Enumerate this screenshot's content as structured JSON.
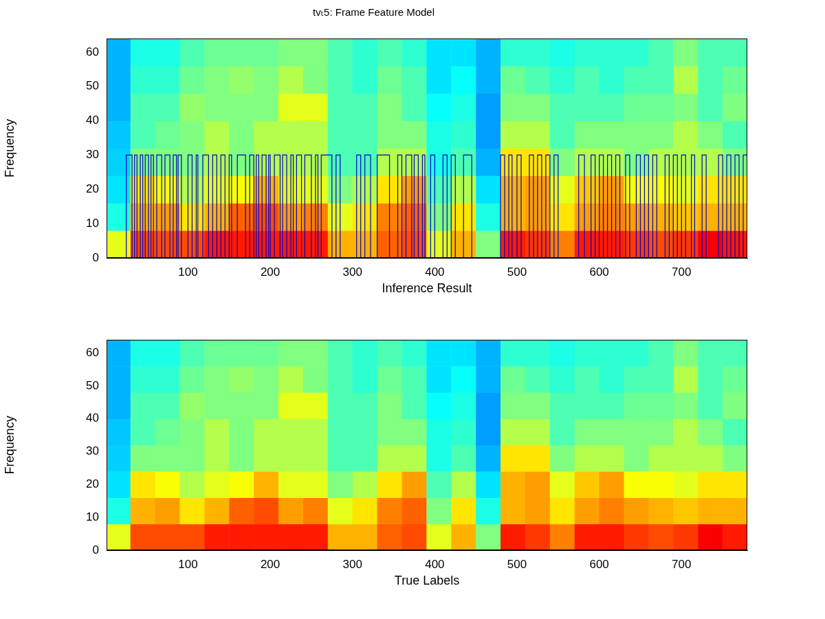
{
  "chart_data": [
    {
      "type": "heatmap",
      "title": "tvₜ5: Frame Feature Model",
      "x_label": "Inference Result",
      "y_label": "Frequency",
      "xlim": [
        1,
        780
      ],
      "xticks": [
        100,
        200,
        300,
        400,
        500,
        600,
        700
      ],
      "ylim": [
        0,
        64
      ],
      "yticks": [
        0,
        10,
        20,
        30,
        40,
        50,
        60
      ],
      "grid": false,
      "color_range": [
        0,
        1
      ],
      "x_edges": [
        0,
        30,
        60,
        90,
        120,
        150,
        180,
        210,
        240,
        270,
        300,
        330,
        360,
        390,
        420,
        450,
        480,
        510,
        540,
        570,
        600,
        630,
        660,
        690,
        720,
        750,
        780
      ],
      "y_edges": [
        0,
        8,
        16,
        24,
        32,
        40,
        48,
        56,
        64
      ],
      "cells": [
        [
          0.6,
          0.4,
          0.35,
          0.33,
          0.32,
          0.3,
          0.3,
          0.3
        ],
        [
          0.8,
          0.7,
          0.65,
          0.5,
          0.45,
          0.45,
          0.42,
          0.4
        ],
        [
          0.8,
          0.72,
          0.62,
          0.5,
          0.48,
          0.45,
          0.42,
          0.4
        ],
        [
          0.8,
          0.65,
          0.55,
          0.5,
          0.5,
          0.52,
          0.48,
          0.45
        ],
        [
          0.85,
          0.7,
          0.6,
          0.55,
          0.55,
          0.5,
          0.5,
          0.48
        ],
        [
          0.85,
          0.78,
          0.62,
          0.5,
          0.5,
          0.5,
          0.52,
          0.48
        ],
        [
          0.85,
          0.8,
          0.7,
          0.55,
          0.55,
          0.5,
          0.5,
          0.48
        ],
        [
          0.85,
          0.72,
          0.6,
          0.55,
          0.55,
          0.6,
          0.55,
          0.5
        ],
        [
          0.85,
          0.75,
          0.6,
          0.55,
          0.55,
          0.6,
          0.5,
          0.5
        ],
        [
          0.7,
          0.6,
          0.5,
          0.45,
          0.45,
          0.45,
          0.45,
          0.45
        ],
        [
          0.7,
          0.65,
          0.55,
          0.45,
          0.45,
          0.45,
          0.42,
          0.42
        ],
        [
          0.78,
          0.75,
          0.65,
          0.55,
          0.5,
          0.5,
          0.48,
          0.45
        ],
        [
          0.8,
          0.78,
          0.72,
          0.55,
          0.5,
          0.45,
          0.45,
          0.42
        ],
        [
          0.6,
          0.5,
          0.45,
          0.4,
          0.4,
          0.38,
          0.35,
          0.35
        ],
        [
          0.7,
          0.65,
          0.55,
          0.45,
          0.42,
          0.4,
          0.38,
          0.35
        ],
        [
          0.5,
          0.4,
          0.35,
          0.3,
          0.28,
          0.28,
          0.3,
          0.3
        ],
        [
          0.85,
          0.7,
          0.7,
          0.65,
          0.55,
          0.5,
          0.48,
          0.42
        ],
        [
          0.82,
          0.72,
          0.72,
          0.65,
          0.55,
          0.5,
          0.45,
          0.42
        ],
        [
          0.75,
          0.65,
          0.6,
          0.5,
          0.45,
          0.45,
          0.42,
          0.4
        ],
        [
          0.85,
          0.72,
          0.68,
          0.55,
          0.5,
          0.45,
          0.45,
          0.42
        ],
        [
          0.85,
          0.75,
          0.72,
          0.55,
          0.5,
          0.45,
          0.42,
          0.42
        ],
        [
          0.82,
          0.72,
          0.62,
          0.5,
          0.5,
          0.48,
          0.45,
          0.42
        ],
        [
          0.8,
          0.7,
          0.62,
          0.55,
          0.5,
          0.48,
          0.45,
          0.45
        ],
        [
          0.82,
          0.68,
          0.6,
          0.55,
          0.55,
          0.5,
          0.55,
          0.5
        ],
        [
          0.88,
          0.7,
          0.65,
          0.55,
          0.5,
          0.45,
          0.45,
          0.45
        ],
        [
          0.85,
          0.7,
          0.65,
          0.5,
          0.45,
          0.5,
          0.48,
          0.45
        ]
      ],
      "series": [
        {
          "type": "line",
          "line_style": "steps",
          "color": "#0000cc",
          "x": [
            1,
            25,
            32,
            35,
            38,
            42,
            45,
            48,
            52,
            55,
            58,
            62,
            68,
            72,
            78,
            82,
            86,
            88,
            92,
            100,
            105,
            110,
            112,
            118,
            125,
            130,
            135,
            140,
            145,
            150,
            153,
            160,
            170,
            175,
            180,
            183,
            186,
            190,
            195,
            198,
            200,
            205,
            212,
            215,
            220,
            225,
            228,
            232,
            238,
            242,
            250,
            255,
            258,
            262,
            275,
            280,
            285,
            305,
            310,
            315,
            322,
            330,
            345,
            355,
            360,
            365,
            372,
            375,
            380,
            385,
            388,
            395,
            400,
            410,
            415,
            420,
            425,
            435,
            445,
            480,
            485,
            490,
            494,
            500,
            505,
            515,
            520,
            525,
            530,
            535,
            540,
            545,
            550,
            575,
            582,
            590,
            595,
            600,
            605,
            610,
            615,
            620,
            625,
            632,
            637,
            645,
            650,
            655,
            660,
            665,
            670,
            680,
            685,
            690,
            695,
            700,
            705,
            712,
            716,
            725,
            730,
            745,
            750,
            755,
            760,
            765,
            770,
            775,
            780
          ],
          "values": [
            0,
            30,
            0,
            30,
            0,
            30,
            0,
            30,
            0,
            30,
            0,
            30,
            0,
            30,
            0,
            30,
            0,
            30,
            0,
            30,
            0,
            30,
            0,
            30,
            0,
            30,
            0,
            30,
            0,
            30,
            0,
            30,
            0,
            30,
            0,
            30,
            0,
            30,
            0,
            30,
            0,
            30,
            0,
            30,
            0,
            30,
            0,
            30,
            0,
            30,
            0,
            30,
            0,
            30,
            0,
            30,
            0,
            30,
            0,
            30,
            0,
            30,
            0,
            30,
            0,
            30,
            0,
            30,
            0,
            30,
            0,
            30,
            0,
            30,
            0,
            30,
            0,
            30,
            0,
            30,
            0,
            30,
            0,
            30,
            0,
            30,
            0,
            30,
            0,
            30,
            0,
            30,
            0,
            30,
            0,
            30,
            0,
            30,
            0,
            30,
            0,
            30,
            0,
            30,
            0,
            30,
            0,
            30,
            0,
            30,
            0,
            30,
            0,
            30,
            0,
            30,
            0,
            30,
            0,
            30,
            0,
            30,
            0,
            30,
            0,
            30,
            0,
            30,
            0
          ]
        }
      ]
    },
    {
      "type": "heatmap",
      "x_label": "True Labels",
      "y_label": "Frequency",
      "xlim": [
        1,
        780
      ],
      "xticks": [
        100,
        200,
        300,
        400,
        500,
        600,
        700
      ],
      "ylim": [
        0,
        64
      ],
      "yticks": [
        0,
        10,
        20,
        30,
        40,
        50,
        60
      ],
      "grid": false,
      "color_range": [
        0,
        1
      ],
      "x_edges": [
        0,
        30,
        60,
        90,
        120,
        150,
        180,
        210,
        240,
        270,
        300,
        330,
        360,
        390,
        420,
        450,
        480,
        510,
        540,
        570,
        600,
        630,
        660,
        690,
        720,
        750,
        780
      ],
      "y_edges": [
        0,
        8,
        16,
        24,
        32,
        40,
        48,
        56,
        64
      ],
      "cells": [
        [
          0.6,
          0.4,
          0.35,
          0.33,
          0.32,
          0.3,
          0.3,
          0.3
        ],
        [
          0.8,
          0.7,
          0.65,
          0.5,
          0.45,
          0.45,
          0.42,
          0.4
        ],
        [
          0.8,
          0.72,
          0.62,
          0.5,
          0.48,
          0.45,
          0.42,
          0.4
        ],
        [
          0.8,
          0.65,
          0.55,
          0.5,
          0.5,
          0.52,
          0.48,
          0.45
        ],
        [
          0.85,
          0.7,
          0.6,
          0.55,
          0.55,
          0.5,
          0.5,
          0.48
        ],
        [
          0.85,
          0.78,
          0.62,
          0.5,
          0.5,
          0.5,
          0.52,
          0.48
        ],
        [
          0.85,
          0.8,
          0.7,
          0.55,
          0.55,
          0.5,
          0.5,
          0.48
        ],
        [
          0.85,
          0.72,
          0.6,
          0.55,
          0.55,
          0.6,
          0.55,
          0.5
        ],
        [
          0.85,
          0.75,
          0.6,
          0.55,
          0.55,
          0.6,
          0.5,
          0.5
        ],
        [
          0.7,
          0.6,
          0.5,
          0.45,
          0.45,
          0.45,
          0.45,
          0.45
        ],
        [
          0.7,
          0.65,
          0.55,
          0.45,
          0.45,
          0.45,
          0.42,
          0.42
        ],
        [
          0.78,
          0.75,
          0.65,
          0.55,
          0.5,
          0.5,
          0.48,
          0.45
        ],
        [
          0.8,
          0.78,
          0.72,
          0.55,
          0.5,
          0.45,
          0.45,
          0.42
        ],
        [
          0.6,
          0.5,
          0.45,
          0.4,
          0.4,
          0.38,
          0.35,
          0.35
        ],
        [
          0.7,
          0.65,
          0.55,
          0.45,
          0.42,
          0.4,
          0.38,
          0.35
        ],
        [
          0.5,
          0.4,
          0.35,
          0.3,
          0.28,
          0.28,
          0.3,
          0.3
        ],
        [
          0.85,
          0.7,
          0.7,
          0.65,
          0.55,
          0.5,
          0.48,
          0.42
        ],
        [
          0.82,
          0.72,
          0.72,
          0.65,
          0.55,
          0.5,
          0.45,
          0.42
        ],
        [
          0.75,
          0.65,
          0.6,
          0.5,
          0.45,
          0.45,
          0.42,
          0.4
        ],
        [
          0.85,
          0.72,
          0.68,
          0.55,
          0.5,
          0.45,
          0.45,
          0.42
        ],
        [
          0.85,
          0.75,
          0.72,
          0.55,
          0.5,
          0.45,
          0.42,
          0.42
        ],
        [
          0.82,
          0.72,
          0.62,
          0.5,
          0.5,
          0.48,
          0.45,
          0.42
        ],
        [
          0.8,
          0.7,
          0.62,
          0.55,
          0.5,
          0.48,
          0.45,
          0.45
        ],
        [
          0.82,
          0.68,
          0.6,
          0.55,
          0.55,
          0.5,
          0.55,
          0.5
        ],
        [
          0.88,
          0.7,
          0.65,
          0.55,
          0.5,
          0.45,
          0.45,
          0.45
        ],
        [
          0.85,
          0.7,
          0.65,
          0.5,
          0.45,
          0.5,
          0.48,
          0.45
        ]
      ]
    }
  ]
}
